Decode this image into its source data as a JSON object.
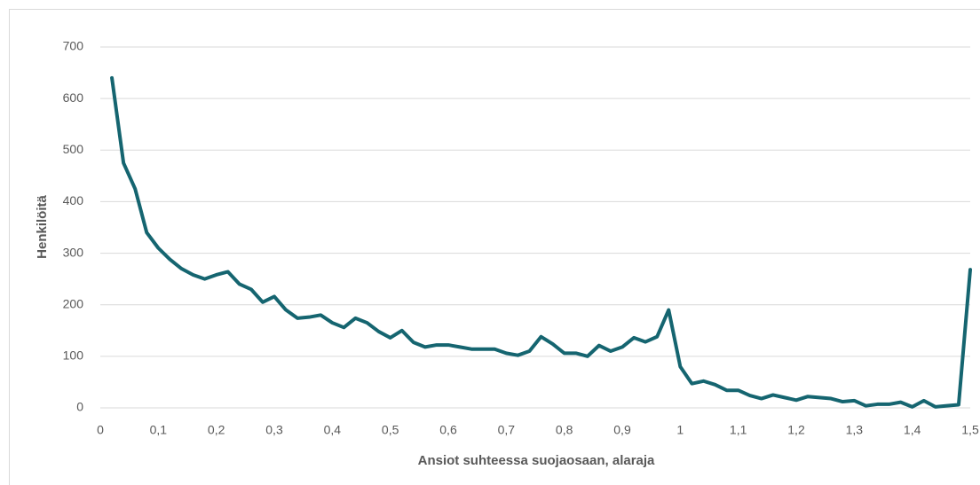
{
  "chart_data": {
    "type": "line",
    "x_label": "Ansiot suhteessa suojaosaan, alaraja",
    "y_label": "Henkilöitä",
    "color": "#156570",
    "x": [
      0.02,
      0.04,
      0.06,
      0.08,
      0.1,
      0.12,
      0.14,
      0.16,
      0.18,
      0.2,
      0.22,
      0.24,
      0.26,
      0.28,
      0.3,
      0.32,
      0.34,
      0.36,
      0.38,
      0.4,
      0.42,
      0.44,
      0.46,
      0.48,
      0.5,
      0.52,
      0.54,
      0.56,
      0.58,
      0.6,
      0.62,
      0.64,
      0.66,
      0.68,
      0.7,
      0.72,
      0.74,
      0.76,
      0.78,
      0.8,
      0.82,
      0.84,
      0.86,
      0.88,
      0.9,
      0.92,
      0.94,
      0.96,
      0.98,
      1.0,
      1.02,
      1.04,
      1.06,
      1.08,
      1.1,
      1.12,
      1.14,
      1.16,
      1.18,
      1.2,
      1.22,
      1.24,
      1.26,
      1.28,
      1.3,
      1.32,
      1.34,
      1.36,
      1.38,
      1.4,
      1.42,
      1.44,
      1.46,
      1.48,
      1.5
    ],
    "values": [
      640,
      475,
      425,
      340,
      310,
      288,
      270,
      258,
      250,
      258,
      264,
      240,
      230,
      205,
      216,
      190,
      174,
      176,
      180,
      165,
      156,
      174,
      165,
      148,
      136,
      150,
      127,
      118,
      122,
      122,
      118,
      114,
      114,
      114,
      106,
      102,
      110,
      138,
      124,
      106,
      106,
      100,
      121,
      110,
      118,
      136,
      128,
      138,
      190,
      80,
      47,
      52,
      45,
      34,
      34,
      24,
      18,
      25,
      20,
      15,
      22,
      20,
      18,
      12,
      14,
      4,
      7,
      7,
      11,
      2,
      14,
      2,
      4,
      6,
      268
    ],
    "xlim": [
      0,
      1.5
    ],
    "xticks": [
      0,
      {
        "value": 0.1,
        "label": "0,1"
      },
      {
        "value": 0.2,
        "label": "0,2"
      },
      {
        "value": 0.3,
        "label": "0,3"
      },
      {
        "value": 0.4,
        "label": "0,4"
      },
      {
        "value": 0.5,
        "label": "0,5"
      },
      {
        "value": 0.6,
        "label": "0,6"
      },
      {
        "value": 0.7,
        "label": "0,7"
      },
      {
        "value": 0.8,
        "label": "0,8"
      },
      {
        "value": 0.9,
        "label": "0,9"
      },
      1,
      {
        "value": 1.1,
        "label": "1,1"
      },
      {
        "value": 1.2,
        "label": "1,2"
      },
      {
        "value": 1.3,
        "label": "1,3"
      },
      {
        "value": 1.4,
        "label": "1,4"
      },
      {
        "value": 1.5,
        "label": "1,5"
      }
    ],
    "ylim": [
      0,
      700
    ],
    "yticks": [
      0,
      100,
      200,
      300,
      400,
      500,
      600,
      700
    ],
    "grid": true
  }
}
